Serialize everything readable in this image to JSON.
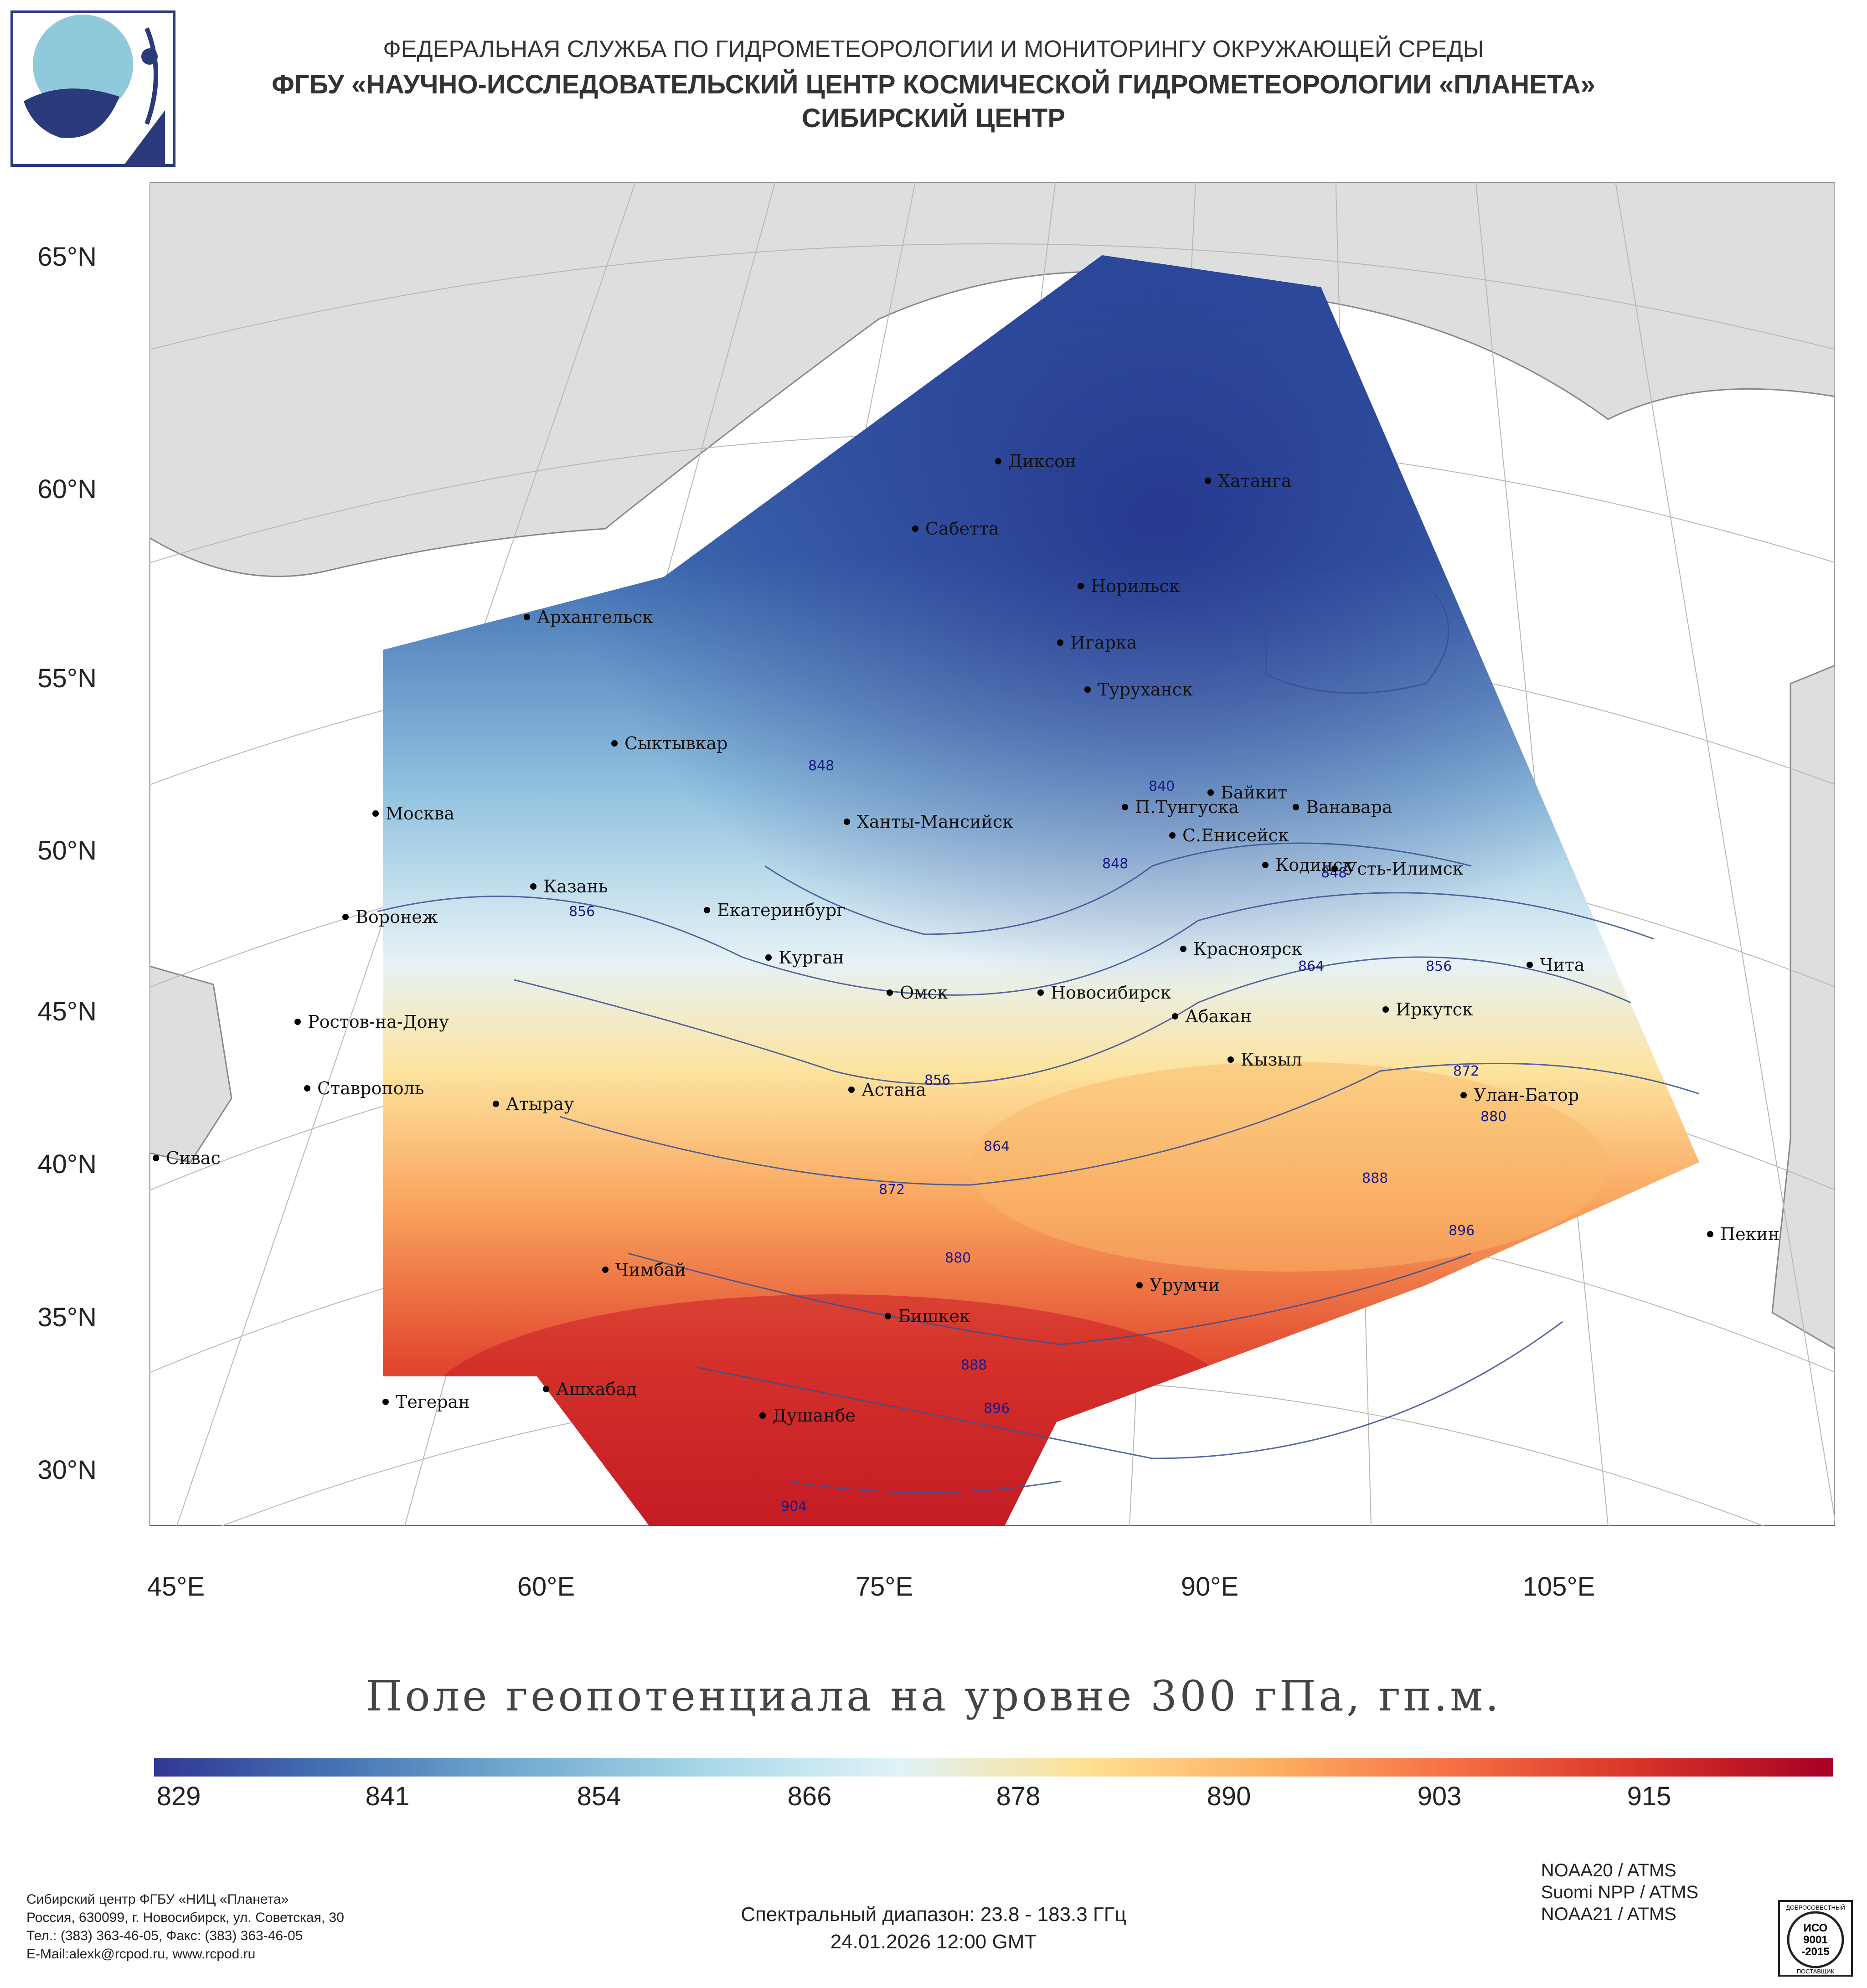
{
  "header": {
    "line1": "ФЕДЕРАЛЬНАЯ СЛУЖБА ПО ГИДРОМЕТЕОРОЛОГИИ И МОНИТОРИНГУ ОКРУЖАЮЩЕЙ СРЕДЫ",
    "line2": "ФГБУ «НАУЧНО-ИССЛЕДОВАТЕЛЬСКИЙ ЦЕНТР КОСМИЧЕСКОЙ ГИДРОМЕТЕОРОЛОГИИ «ПЛАНЕТА»",
    "line3": "СИБИРСКИЙ ЦЕНТР"
  },
  "logo": {
    "icon": "planeta-logo-icon"
  },
  "map": {
    "lat_labels": [
      "65°N",
      "60°N",
      "55°N",
      "50°N",
      "45°N",
      "40°N",
      "35°N",
      "30°N"
    ],
    "lon_labels": [
      "45°E",
      "60°E",
      "75°E",
      "90°E",
      "105°E"
    ],
    "cities": [
      "Диксон",
      "Хатанга",
      "Сабетта",
      "Норильск",
      "Архангельск",
      "Игарка",
      "Туруханск",
      "Сыктывкар",
      "Байкит",
      "Москва",
      "П.Тунгуска",
      "Ванавара",
      "Ханты-Мансийск",
      "С.Енисейск",
      "Кодинск",
      "Усть-Илимск",
      "Казань",
      "Екатеринбург",
      "Воронеж",
      "Курган",
      "Красноярск",
      "Чита",
      "Омск",
      "Новосибирск",
      "Ростов-на-Дону",
      "Абакан",
      "Иркутск",
      "Кызыл",
      "Ставрополь",
      "Астана",
      "Улан-Батор",
      "Атырау",
      "Сивас",
      "Пекин",
      "Чимбай",
      "Урумчи",
      "Бишкек",
      "Ашхабад",
      "Тегеран",
      "Душанбе"
    ],
    "isoline_labels": [
      "840",
      "848",
      "848",
      "848",
      "856",
      "856",
      "856",
      "864",
      "864",
      "872",
      "872",
      "880",
      "880",
      "888",
      "888",
      "896",
      "896",
      "904"
    ]
  },
  "title": "Поле геопотенциала на уровне 300 гПа, гп.м.",
  "colorbar": {
    "labels": [
      "829",
      "841",
      "854",
      "866",
      "878",
      "890",
      "903",
      "915"
    ],
    "colors": [
      "#313695",
      "#4575b4",
      "#74add1",
      "#abd9e9",
      "#e0f3f8",
      "#fee090",
      "#fdae61",
      "#f46d43",
      "#d73027",
      "#a50026"
    ]
  },
  "footer": {
    "sources": [
      "NOAA20 / ATMS",
      "Suomi NPP / ATMS",
      "NOAA21 / ATMS"
    ],
    "contact": [
      "Сибирский центр ФГБУ «НИЦ «Планета»",
      "Россия, 630099, г. Новосибирск, ул. Советская, 30",
      "Тел.: (383) 363-46-05, Факс: (383) 363-46-05",
      "E-Mail:alexk@rcpod.ru, www.rcpod.ru"
    ],
    "spectral": "Спектральный диапазон: 23.8 - 183.3 ГГц",
    "datetime": "24.01.2026 12:00 GMT"
  },
  "iso_badge": {
    "top": "ДОБРОСОВЕСТНЫЙ",
    "line1": "ИСО",
    "line2": "9001",
    "line3": "-2015",
    "bottom": "ПОСТАВЩИК"
  }
}
